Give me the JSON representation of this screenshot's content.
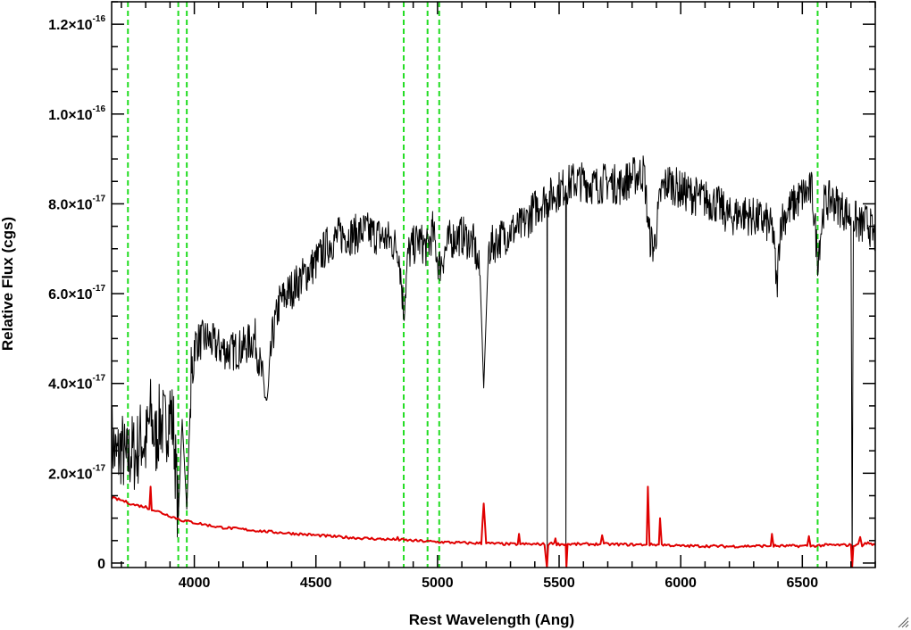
{
  "chart_data": {
    "type": "line",
    "xlabel": "Rest Wavelength (Ang)",
    "ylabel": "Relative Flux (cgs)",
    "xlim": [
      3660,
      6800
    ],
    "ylim": [
      -1e-18,
      1.25e-16
    ],
    "x_ticks": [
      {
        "value": 4000,
        "label": "4000"
      },
      {
        "value": 4500,
        "label": "4500"
      },
      {
        "value": 5000,
        "label": "5000"
      },
      {
        "value": 5500,
        "label": "5500"
      },
      {
        "value": 6000,
        "label": "6000"
      },
      {
        "value": 6500,
        "label": "6500"
      }
    ],
    "x_minor_step": 100,
    "y_ticks": [
      {
        "value": 0,
        "mantissa": "0",
        "exponent": ""
      },
      {
        "value": 2e-17,
        "mantissa": "2.0×10",
        "exponent": "-17"
      },
      {
        "value": 4e-17,
        "mantissa": "4.0×10",
        "exponent": "-17"
      },
      {
        "value": 6e-17,
        "mantissa": "6.0×10",
        "exponent": "-17"
      },
      {
        "value": 8e-17,
        "mantissa": "8.0×10",
        "exponent": "-17"
      },
      {
        "value": 1e-16,
        "mantissa": "1.0×10",
        "exponent": "-16"
      },
      {
        "value": 1.2e-16,
        "mantissa": "1.2×10",
        "exponent": "-16"
      }
    ],
    "y_minor_step": 5e-18,
    "vertical_lines": [
      3727,
      3934,
      3969,
      4861,
      4959,
      5007,
      6563
    ],
    "series": [
      {
        "color": "#000000",
        "style": "solid",
        "points": [
          [
            3660,
            2.8e-17
          ],
          [
            3680,
            2.3e-17
          ],
          [
            3700,
            2.6e-17
          ],
          [
            3720,
            2.2e-17
          ],
          [
            3740,
            2.5e-17
          ],
          [
            3760,
            2.4e-17
          ],
          [
            3780,
            2.8e-17
          ],
          [
            3800,
            2.6e-17
          ],
          [
            3820,
            3.3e-17
          ],
          [
            3840,
            2.7e-17
          ],
          [
            3860,
            3.2e-17
          ],
          [
            3880,
            3e-17
          ],
          [
            3900,
            3.4e-17
          ],
          [
            3915,
            3e-17
          ],
          [
            3934,
            1e-17
          ],
          [
            3950,
            3.2e-17
          ],
          [
            3969,
            1.2e-17
          ],
          [
            3985,
            3.8e-17
          ],
          [
            4000,
            4.9e-17
          ],
          [
            4050,
            5e-17
          ],
          [
            4100,
            4.8e-17
          ],
          [
            4150,
            4.7e-17
          ],
          [
            4200,
            4.8e-17
          ],
          [
            4250,
            5e-17
          ],
          [
            4300,
            3.5e-17
          ],
          [
            4320,
            5e-17
          ],
          [
            4350,
            5.8e-17
          ],
          [
            4400,
            6.1e-17
          ],
          [
            4450,
            6.4e-17
          ],
          [
            4500,
            6.7e-17
          ],
          [
            4550,
            7.1e-17
          ],
          [
            4600,
            7.3e-17
          ],
          [
            4650,
            7.3e-17
          ],
          [
            4700,
            7.4e-17
          ],
          [
            4750,
            7.3e-17
          ],
          [
            4800,
            7.2e-17
          ],
          [
            4840,
            7e-17
          ],
          [
            4861,
            5.6e-17
          ],
          [
            4880,
            6.9e-17
          ],
          [
            4920,
            7.2e-17
          ],
          [
            4959,
            7e-17
          ],
          [
            4980,
            7.4e-17
          ],
          [
            5007,
            6.6e-17
          ],
          [
            5050,
            7.2e-17
          ],
          [
            5100,
            7.3e-17
          ],
          [
            5150,
            7.1e-17
          ],
          [
            5175,
            6.4e-17
          ],
          [
            5190,
            3.9e-17
          ],
          [
            5210,
            7e-17
          ],
          [
            5250,
            7.2e-17
          ],
          [
            5300,
            7.4e-17
          ],
          [
            5350,
            7.5e-17
          ],
          [
            5400,
            7.9e-17
          ],
          [
            5440,
            8.1e-17
          ],
          [
            5450,
            8.1e-17
          ],
          [
            5451,
            0.0
          ],
          [
            5452,
            8.1e-17
          ],
          [
            5500,
            8.3e-17
          ],
          [
            5527,
            8.4e-17
          ],
          [
            5528,
            0.0
          ],
          [
            5530,
            8.4e-17
          ],
          [
            5560,
            8.5e-17
          ],
          [
            5600,
            8.5e-17
          ],
          [
            5650,
            8.4e-17
          ],
          [
            5700,
            8.5e-17
          ],
          [
            5750,
            8.4e-17
          ],
          [
            5800,
            8.6e-17
          ],
          [
            5850,
            8.7e-17
          ],
          [
            5870,
            7.3e-17
          ],
          [
            5890,
            7e-17
          ],
          [
            5920,
            8.3e-17
          ],
          [
            5950,
            8.5e-17
          ],
          [
            6000,
            8.3e-17
          ],
          [
            6050,
            8.2e-17
          ],
          [
            6100,
            8.1e-17
          ],
          [
            6150,
            8e-17
          ],
          [
            6200,
            7.7e-17
          ],
          [
            6250,
            7.8e-17
          ],
          [
            6300,
            7.7e-17
          ],
          [
            6350,
            7.6e-17
          ],
          [
            6380,
            7.4e-17
          ],
          [
            6395,
            6.1e-17
          ],
          [
            6410,
            7.6e-17
          ],
          [
            6450,
            7.9e-17
          ],
          [
            6500,
            8.2e-17
          ],
          [
            6540,
            8.3e-17
          ],
          [
            6563,
            6.8e-17
          ],
          [
            6590,
            8e-17
          ],
          [
            6620,
            8.1e-17
          ],
          [
            6660,
            7.9e-17
          ],
          [
            6700,
            7.7e-17
          ],
          [
            6705,
            0.0
          ],
          [
            6710,
            7.7e-17
          ],
          [
            6740,
            7.5e-17
          ],
          [
            6770,
            7.6e-17
          ],
          [
            6800,
            7.2e-17
          ]
        ]
      },
      {
        "color": "#e00000",
        "style": "solid",
        "points": [
          [
            3660,
            1.45e-17
          ],
          [
            3700,
            1.4e-17
          ],
          [
            3750,
            1.3e-17
          ],
          [
            3800,
            1.25e-17
          ],
          [
            3815,
            1.2e-17
          ],
          [
            3820,
            1.7e-17
          ],
          [
            3825,
            1.2e-17
          ],
          [
            3850,
            1.15e-17
          ],
          [
            3900,
            1.05e-17
          ],
          [
            3950,
            9.5e-18
          ],
          [
            4000,
            9e-18
          ],
          [
            4050,
            8.5e-18
          ],
          [
            4100,
            8e-18
          ],
          [
            4200,
            7.5e-18
          ],
          [
            4300,
            7e-18
          ],
          [
            4400,
            6.6e-18
          ],
          [
            4500,
            6.2e-18
          ],
          [
            4600,
            5.8e-18
          ],
          [
            4700,
            5.5e-18
          ],
          [
            4830,
            5.2e-18
          ],
          [
            4836,
            5.8e-18
          ],
          [
            4842,
            5.2e-18
          ],
          [
            4900,
            5e-18
          ],
          [
            5000,
            4.7e-18
          ],
          [
            5100,
            4.5e-18
          ],
          [
            5180,
            4.4e-18
          ],
          [
            5190,
            1.35e-17
          ],
          [
            5200,
            4.4e-18
          ],
          [
            5300,
            4.2e-18
          ],
          [
            5330,
            4.2e-18
          ],
          [
            5335,
            6.5e-18
          ],
          [
            5340,
            4.2e-18
          ],
          [
            5440,
            4.2e-18
          ],
          [
            5450,
            -1e-18
          ],
          [
            5455,
            4.2e-18
          ],
          [
            5480,
            4.5e-18
          ],
          [
            5485,
            5.5e-18
          ],
          [
            5490,
            4.2e-18
          ],
          [
            5527,
            4.2e-18
          ],
          [
            5530,
            -1e-18
          ],
          [
            5535,
            4.2e-18
          ],
          [
            5600,
            4.2e-18
          ],
          [
            5670,
            4.2e-18
          ],
          [
            5677,
            6.2e-18
          ],
          [
            5684,
            4.2e-18
          ],
          [
            5800,
            4.1e-18
          ],
          [
            5860,
            4.1e-18
          ],
          [
            5865,
            1.7e-17
          ],
          [
            5872,
            4.1e-18
          ],
          [
            5910,
            4.1e-18
          ],
          [
            5915,
            1e-17
          ],
          [
            5922,
            4.1e-18
          ],
          [
            6000,
            3.8e-18
          ],
          [
            6100,
            3.8e-18
          ],
          [
            6200,
            3.7e-18
          ],
          [
            6300,
            3.8e-18
          ],
          [
            6370,
            3.8e-18
          ],
          [
            6375,
            6.5e-18
          ],
          [
            6382,
            3.8e-18
          ],
          [
            6520,
            3.8e-18
          ],
          [
            6527,
            6e-18
          ],
          [
            6534,
            3.8e-18
          ],
          [
            6600,
            4e-18
          ],
          [
            6700,
            4e-18
          ],
          [
            6705,
            -1e-18
          ],
          [
            6710,
            4e-18
          ],
          [
            6730,
            4e-18
          ],
          [
            6738,
            6e-18
          ],
          [
            6746,
            4e-18
          ],
          [
            6770,
            4.5e-18
          ],
          [
            6800,
            4e-18
          ]
        ]
      }
    ]
  }
}
